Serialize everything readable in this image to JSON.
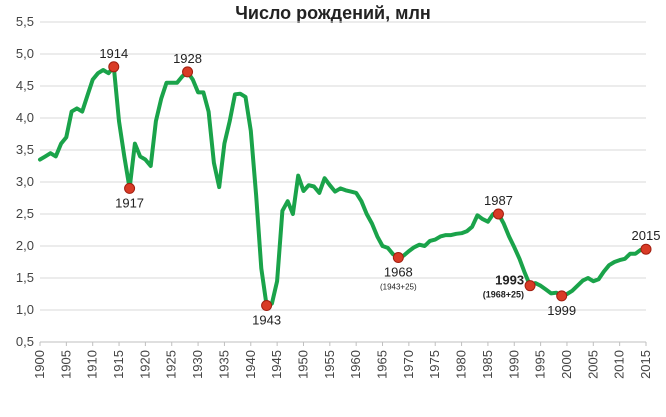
{
  "chart_data": {
    "type": "line",
    "title": "Число рождений, млн",
    "xlabel": "",
    "ylabel": "",
    "xlim": [
      1900,
      2015
    ],
    "ylim": [
      0.5,
      5.5
    ],
    "grid": "horizontal",
    "color": "#1aa34a",
    "marker_color": "#d93b26",
    "y_ticks": [
      "0,5",
      "1,0",
      "1,5",
      "2,0",
      "2,5",
      "3,0",
      "3,5",
      "4,0",
      "4,5",
      "5,0",
      "5,5"
    ],
    "x_ticks": [
      "1900",
      "1905",
      "1910",
      "1915",
      "1920",
      "1925",
      "1930",
      "1935",
      "1940",
      "1945",
      "1950",
      "1955",
      "1960",
      "1965",
      "1970",
      "1975",
      "1980",
      "1985",
      "1990",
      "1995",
      "2000",
      "2005",
      "2010",
      "2015"
    ],
    "series": [
      {
        "x": [
          1900,
          1901,
          1902,
          1903,
          1904,
          1905,
          1906,
          1907,
          1908,
          1909,
          1910,
          1911,
          1912,
          1913,
          1914,
          1915,
          1916,
          1917,
          1918,
          1919,
          1920,
          1921,
          1922,
          1923,
          1924,
          1925,
          1926,
          1927,
          1928,
          1929,
          1930,
          1931,
          1932,
          1933,
          1934,
          1935,
          1936,
          1937,
          1938,
          1939,
          1940,
          1941,
          1942,
          1943,
          1944,
          1945,
          1946,
          1947,
          1948,
          1949,
          1950,
          1951,
          1952,
          1953,
          1954,
          1955,
          1956,
          1957,
          1958,
          1959,
          1960,
          1961,
          1962,
          1963,
          1964,
          1965,
          1966,
          1967,
          1968,
          1969,
          1970,
          1971,
          1972,
          1973,
          1974,
          1975,
          1976,
          1977,
          1978,
          1979,
          1980,
          1981,
          1982,
          1983,
          1984,
          1985,
          1986,
          1987,
          1988,
          1989,
          1990,
          1991,
          1992,
          1993,
          1994,
          1995,
          1996,
          1997,
          1998,
          1999,
          2000,
          2001,
          2002,
          2003,
          2004,
          2005,
          2006,
          2007,
          2008,
          2009,
          2010,
          2011,
          2012,
          2013,
          2014,
          2015
        ],
        "values": [
          3.35,
          3.4,
          3.45,
          3.4,
          3.6,
          3.7,
          4.1,
          4.15,
          4.1,
          4.35,
          4.6,
          4.7,
          4.75,
          4.7,
          4.8,
          3.95,
          3.4,
          2.9,
          3.6,
          3.4,
          3.35,
          3.25,
          3.95,
          4.3,
          4.55,
          4.55,
          4.55,
          4.65,
          4.72,
          4.6,
          4.4,
          4.4,
          4.1,
          3.3,
          2.92,
          3.6,
          3.95,
          4.37,
          4.38,
          4.33,
          3.8,
          2.8,
          1.65,
          1.07,
          1.1,
          1.45,
          2.55,
          2.7,
          2.5,
          3.1,
          2.86,
          2.95,
          2.93,
          2.83,
          3.06,
          2.95,
          2.85,
          2.9,
          2.87,
          2.85,
          2.83,
          2.7,
          2.5,
          2.35,
          2.15,
          2.0,
          1.97,
          1.87,
          1.82,
          1.85,
          1.92,
          1.98,
          2.02,
          2.0,
          2.08,
          2.1,
          2.15,
          2.17,
          2.17,
          2.19,
          2.2,
          2.23,
          2.3,
          2.48,
          2.42,
          2.38,
          2.5,
          2.5,
          2.35,
          2.15,
          1.98,
          1.8,
          1.58,
          1.38,
          1.42,
          1.38,
          1.32,
          1.26,
          1.27,
          1.22,
          1.25,
          1.3,
          1.38,
          1.46,
          1.5,
          1.45,
          1.48,
          1.6,
          1.7,
          1.75,
          1.78,
          1.8,
          1.88,
          1.88,
          1.94,
          1.95
        ]
      }
    ],
    "annotations": [
      {
        "x": 1914,
        "y": 4.8,
        "label": "1914",
        "pos": "above"
      },
      {
        "x": 1917,
        "y": 2.9,
        "label": "1917",
        "pos": "below"
      },
      {
        "x": 1928,
        "y": 4.72,
        "label": "1928",
        "pos": "above"
      },
      {
        "x": 1943,
        "y": 1.07,
        "label": "1943",
        "pos": "below"
      },
      {
        "x": 1968,
        "y": 1.82,
        "label": "1968",
        "pos": "below",
        "sub": "(1943+25)"
      },
      {
        "x": 1987,
        "y": 2.5,
        "label": "1987",
        "pos": "above"
      },
      {
        "x": 1993,
        "y": 1.38,
        "label": "1993",
        "pos": "left",
        "sub": "(1968+25)",
        "bold": true
      },
      {
        "x": 1999,
        "y": 1.22,
        "label": "1999",
        "pos": "below"
      },
      {
        "x": 2015,
        "y": 1.95,
        "label": "2015",
        "pos": "above"
      }
    ]
  }
}
